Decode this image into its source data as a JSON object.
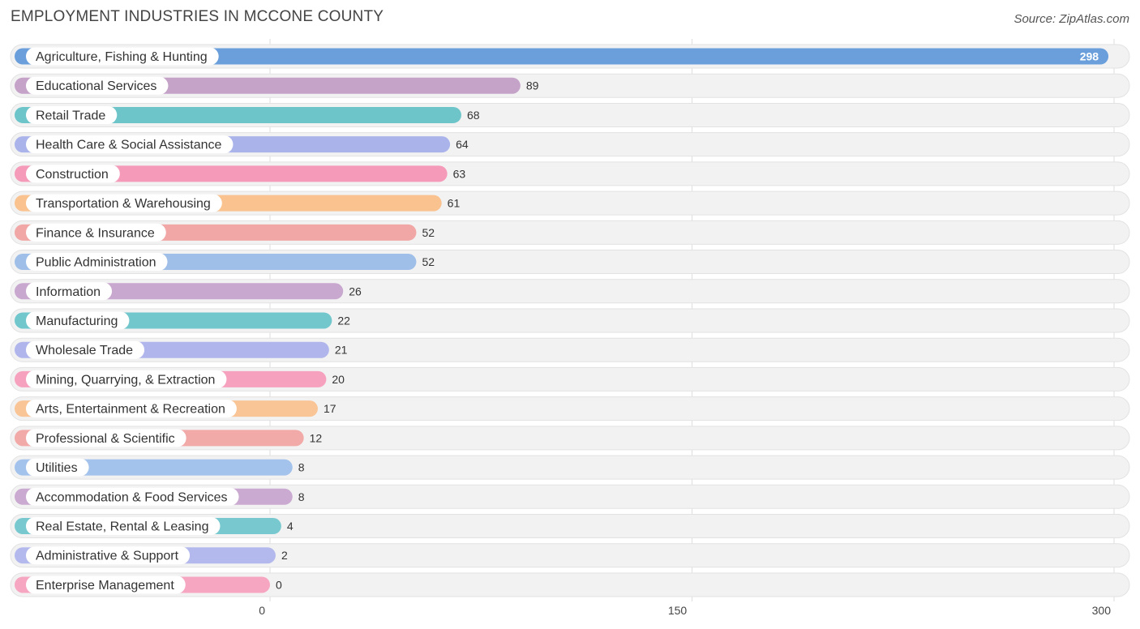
{
  "chart_data": {
    "type": "bar",
    "orientation": "horizontal",
    "title": "EMPLOYMENT INDUSTRIES IN MCCONE COUNTY",
    "source": "Source: ZipAtlas.com",
    "xlim": [
      0,
      300
    ],
    "xticks": [
      0,
      150,
      300
    ],
    "grid": true,
    "categories": [
      "Agriculture, Fishing & Hunting",
      "Educational Services",
      "Retail Trade",
      "Health Care & Social Assistance",
      "Construction",
      "Transportation & Warehousing",
      "Finance & Insurance",
      "Public Administration",
      "Information",
      "Manufacturing",
      "Wholesale Trade",
      "Mining, Quarrying, & Extraction",
      "Arts, Entertainment & Recreation",
      "Professional & Scientific",
      "Utilities",
      "Accommodation & Food Services",
      "Real Estate, Rental & Leasing",
      "Administrative & Support",
      "Enterprise Management"
    ],
    "values": [
      298,
      89,
      68,
      64,
      63,
      61,
      52,
      52,
      26,
      22,
      21,
      20,
      17,
      12,
      8,
      8,
      4,
      2,
      0
    ],
    "colors": [
      "#6a9fdc",
      "#c5a3c9",
      "#6dc5ca",
      "#aab4ea",
      "#f59ab8",
      "#f9c28f",
      "#f0a7a5",
      "#9fbfe9",
      "#c9a8cf",
      "#72c7cd",
      "#b0b6ec",
      "#f6a1bd",
      "#f9c596",
      "#f1aaa8",
      "#a4c3ec",
      "#caaad0",
      "#77c9cf",
      "#b3b9ec",
      "#f7a6c1"
    ]
  }
}
